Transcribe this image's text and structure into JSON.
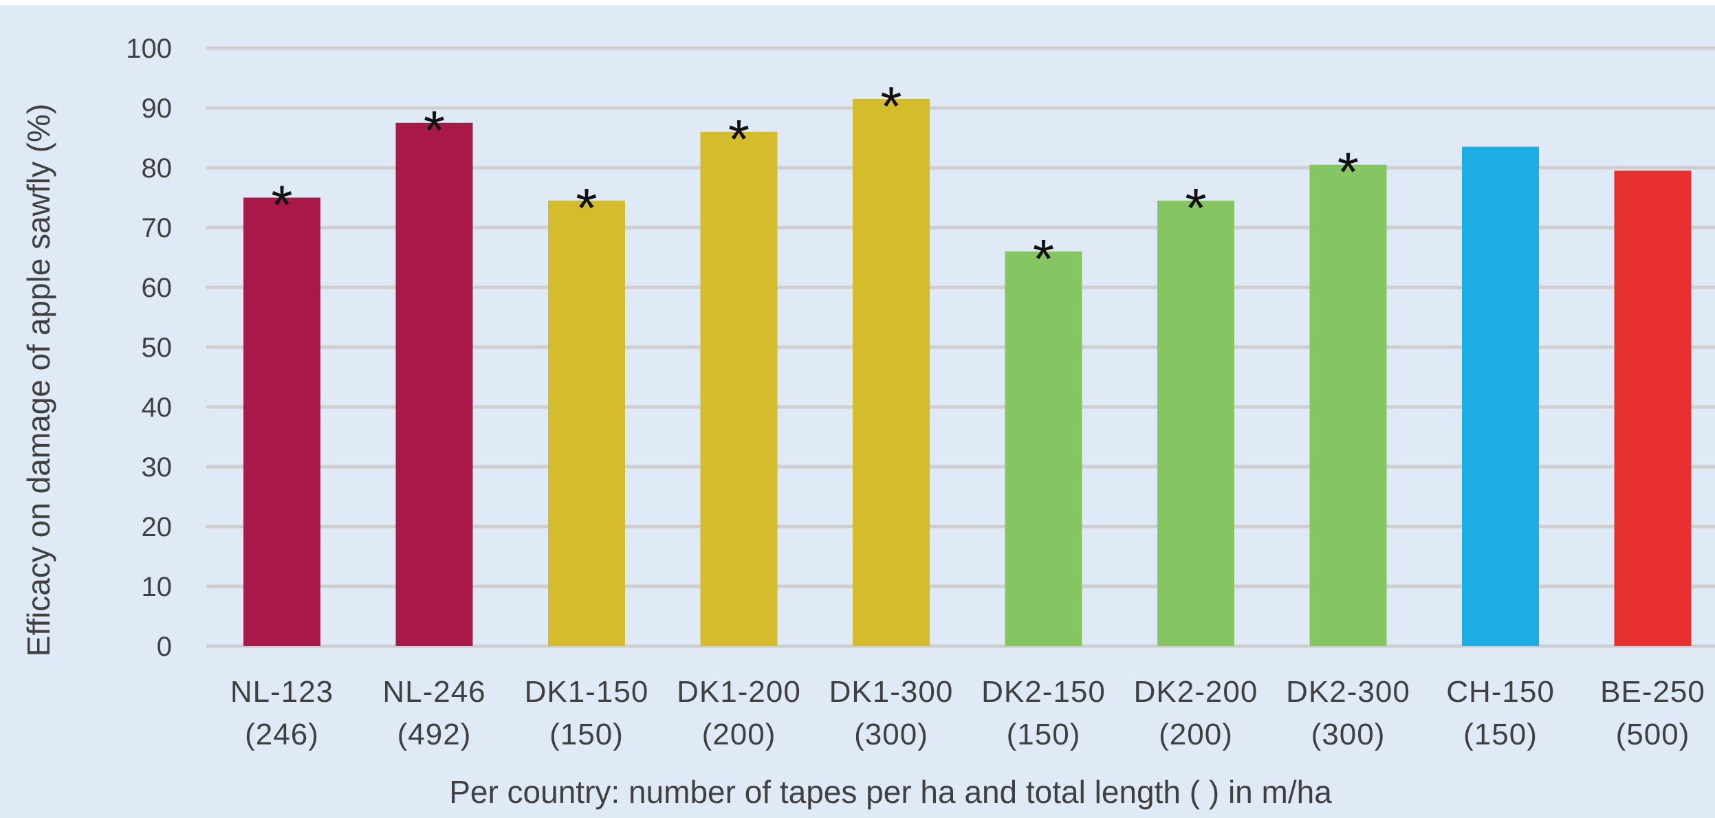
{
  "chart_data": {
    "type": "bar",
    "xlabel": "Per country: number of tapes per ha and total length ( ) in m/ha",
    "ylabel": "Efficacy on damage of apple sawfly (%)",
    "ylim": [
      0,
      100
    ],
    "yticks": [
      0,
      10,
      20,
      30,
      40,
      50,
      60,
      70,
      80,
      90,
      100
    ],
    "grid": true,
    "categories": [
      {
        "line1": "NL-123",
        "line2": "(246)"
      },
      {
        "line1": "NL-246",
        "line2": "(492)"
      },
      {
        "line1": "DK1-150",
        "line2": "(150)"
      },
      {
        "line1": "DK1-200",
        "line2": "(200)"
      },
      {
        "line1": "DK1-300",
        "line2": "(300)"
      },
      {
        "line1": "DK2-150",
        "line2": "(150)"
      },
      {
        "line1": "DK2-200",
        "line2": "(200)"
      },
      {
        "line1": "DK2-300",
        "line2": "(300)"
      },
      {
        "line1": "CH-150",
        "line2": "(150)"
      },
      {
        "line1": "BE-250",
        "line2": "(500)"
      }
    ],
    "values": [
      75,
      87.5,
      74.5,
      86,
      91.5,
      66,
      74.5,
      80.5,
      83.5,
      79.5
    ],
    "significance_marker": "*",
    "significant": [
      true,
      true,
      true,
      true,
      true,
      true,
      true,
      true,
      false,
      false
    ],
    "colors": [
      "#a8194a",
      "#a8194a",
      "#d4bc2c",
      "#d4bc2c",
      "#d4bc2c",
      "#85c662",
      "#85c662",
      "#85c662",
      "#1caee4",
      "#e93030"
    ],
    "gridline_color": "#cfcfcf"
  }
}
